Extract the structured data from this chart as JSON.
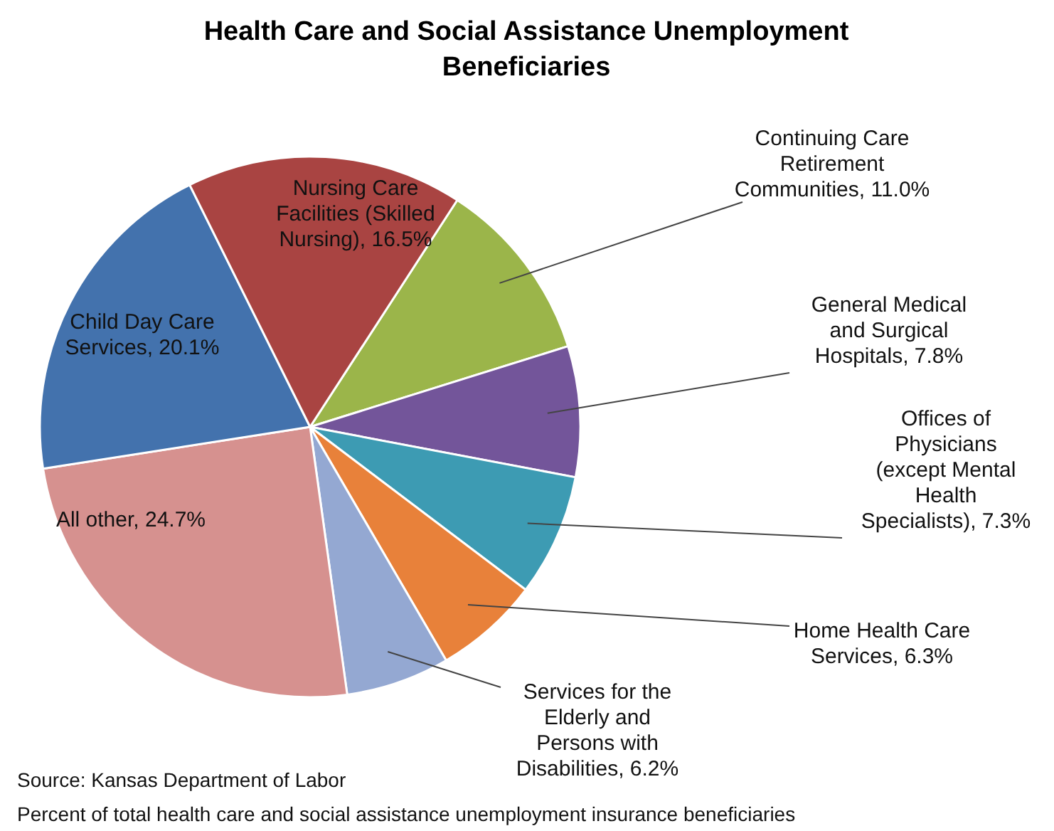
{
  "chart_data": {
    "type": "pie",
    "title": "Health Care and Social Assistance Unemployment Beneficiaries",
    "categories": [
      "Continuing Care Retirement Communities",
      "General Medical and Surgical Hospitals",
      "Offices of Physicians (except Mental Health Specialists)",
      "Home Health Care Services",
      "Services for the Elderly and Persons with Disabilities",
      "All other",
      "Child Day Care Services",
      "Nursing Care Facilities (Skilled Nursing)"
    ],
    "values": [
      11.0,
      7.8,
      7.3,
      6.3,
      6.2,
      24.7,
      20.1,
      16.5
    ],
    "value_labels": [
      "11.0%",
      "7.8%",
      "7.3%",
      "6.3%",
      "6.2%",
      "24.7%",
      "20.1%",
      "16.5%"
    ],
    "colors": [
      "#9bb54a",
      "#73559a",
      "#3d9bb3",
      "#e8813a",
      "#94a8d2",
      "#d6918f",
      "#4372ad",
      "#a94442"
    ],
    "annotations": [
      "Source:  Kansas Department of Labor",
      "Percent of total health care and social assistance unemployment insurance beneficiaries"
    ]
  }
}
